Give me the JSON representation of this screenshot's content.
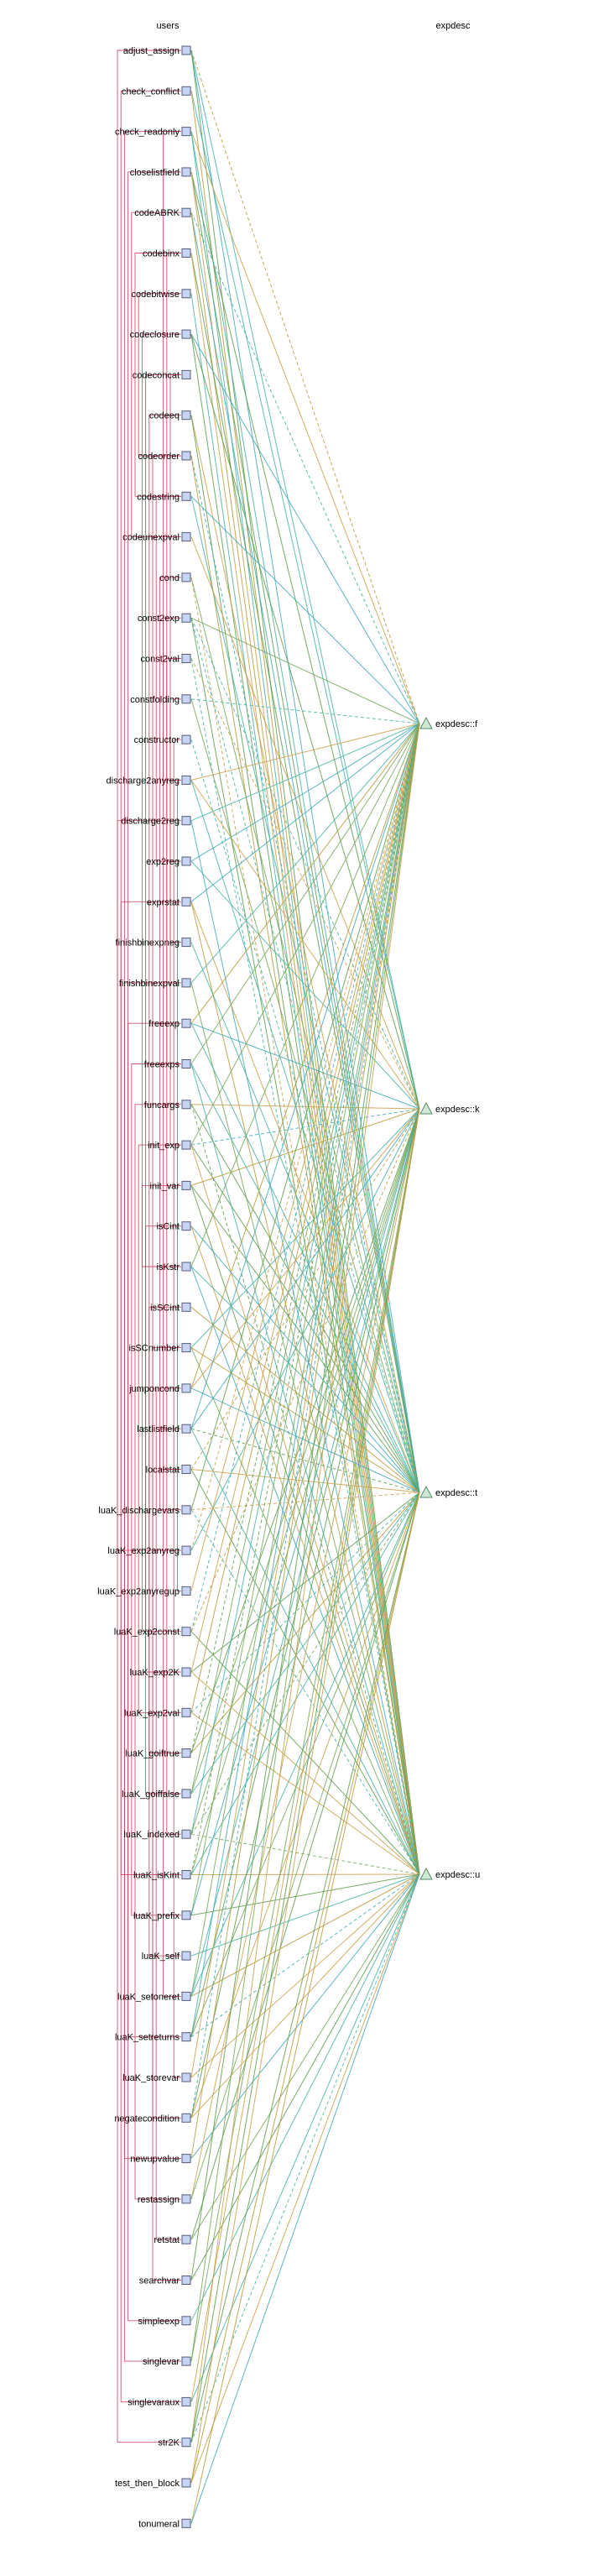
{
  "headers": {
    "users": "users",
    "expdesc": "expdesc"
  },
  "users": [
    "adjust_assign",
    "check_conflict",
    "check_readonly",
    "closelistfield",
    "codeABRK",
    "codebinx",
    "codebitwise",
    "codeclosure",
    "codeconcat",
    "codeeq",
    "codeorder",
    "codestring",
    "codeunexpval",
    "cond",
    "const2exp",
    "const2val",
    "constfolding",
    "constructor",
    "discharge2anyreg",
    "discharge2reg",
    "exp2reg",
    "exprstat",
    "finishbinexpneg",
    "finishbinexpval",
    "freeexp",
    "freeexps",
    "funcargs",
    "init_exp",
    "init_var",
    "isCint",
    "isKstr",
    "isSCint",
    "isSCnumber",
    "jumponcond",
    "lastlistfield",
    "localstat",
    "luaK_dischargevars",
    "luaK_exp2anyreg",
    "luaK_exp2anyregup",
    "luaK_exp2const",
    "luaK_exp2K",
    "luaK_exp2val",
    "luaK_goiftrue",
    "luaK_goiffalse",
    "luaK_indexed",
    "luaK_isKint",
    "luaK_prefix",
    "luaK_self",
    "luaK_setoneret",
    "luaK_setreturns",
    "luaK_storevar",
    "negatecondition",
    "newupvalue",
    "restassign",
    "retstat",
    "searchvar",
    "simpleexp",
    "singlevar",
    "singlevaraux",
    "str2K",
    "test_then_block",
    "tonumeral"
  ],
  "targets": [
    "expdesc::f",
    "expdesc::k",
    "expdesc::t",
    "expdesc::u"
  ],
  "colors": {
    "edge_palette": [
      "#c9a04a",
      "#5d9c4e",
      "#46b3a4",
      "#b79a3a",
      "#74a85a",
      "#3fa8b8"
    ],
    "internal_link": "#c8385a",
    "user_box": "#c8d4f4",
    "target_triangle": "#cfe8d4"
  },
  "icons": {
    "user_node": "square-node-icon",
    "target_node": "triangle-node-icon"
  }
}
